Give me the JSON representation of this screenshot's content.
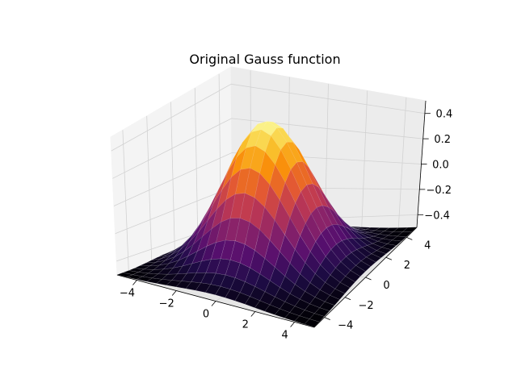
{
  "chart_data": {
    "type": "surface",
    "title": "Original Gauss function",
    "xlabel": "",
    "ylabel": "",
    "zlabel": "",
    "function": "exp(-(x^2 + y^2) / 8)",
    "colormap": "inferno",
    "grid": true,
    "x": [
      -5.0,
      -4.5,
      -4.0,
      -3.5,
      -3.0,
      -2.5,
      -2.0,
      -1.5,
      -1.0,
      -0.5,
      0.0,
      0.5,
      1.0,
      1.5,
      2.0,
      2.5,
      3.0,
      3.5,
      4.0,
      4.5,
      5.0
    ],
    "y": [
      -5.0,
      -4.5,
      -4.0,
      -3.5,
      -3.0,
      -2.5,
      -2.0,
      -1.5,
      -1.0,
      -0.5,
      0.0,
      0.5,
      1.0,
      1.5,
      2.0,
      2.5,
      3.0,
      3.5,
      4.0,
      4.5,
      5.0
    ],
    "xlim": [
      -5,
      5
    ],
    "ylim": [
      -5,
      5
    ],
    "zlim": [
      -0.5,
      0.5
    ],
    "x_ticks": [
      {
        "value": -4,
        "label": "−4"
      },
      {
        "value": -2,
        "label": "−2"
      },
      {
        "value": 0,
        "label": "0"
      },
      {
        "value": 2,
        "label": "2"
      },
      {
        "value": 4,
        "label": "4"
      }
    ],
    "y_ticks": [
      {
        "value": -4,
        "label": "−4"
      },
      {
        "value": -2,
        "label": "−2"
      },
      {
        "value": 0,
        "label": "0"
      },
      {
        "value": 2,
        "label": "2"
      },
      {
        "value": 4,
        "label": "4"
      }
    ],
    "z_ticks": [
      {
        "value": 0.4,
        "label": "0.4"
      },
      {
        "value": 0.2,
        "label": "0.2"
      },
      {
        "value": 0.0,
        "label": "0.0"
      },
      {
        "value": -0.2,
        "label": "−0.2"
      },
      {
        "value": -0.4,
        "label": "−0.4"
      }
    ]
  }
}
